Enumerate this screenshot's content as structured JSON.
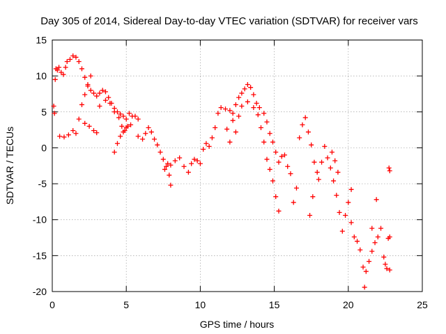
{
  "chart_data": {
    "type": "scatter",
    "title": "Day 305 of 2014, Sidereal Day-to-day VTEC variation (SDTVAR) for receiver vars",
    "xlabel": "GPS time / hours",
    "ylabel": "SDTVAR / TECUs",
    "xlim": [
      0,
      25
    ],
    "ylim": [
      -20,
      15
    ],
    "xticks": [
      0,
      5,
      10,
      15,
      20,
      25
    ],
    "yticks": [
      -20,
      -15,
      -10,
      -5,
      0,
      5,
      10,
      15
    ],
    "grid": true,
    "marker": "+",
    "series": [
      {
        "name": "SDTVAR",
        "color": "#ff0000",
        "points": [
          [
            0.1,
            5.8
          ],
          [
            0.15,
            4.8
          ],
          [
            0.2,
            9.5
          ],
          [
            0.25,
            11.0
          ],
          [
            0.35,
            10.8
          ],
          [
            0.45,
            11.2
          ],
          [
            0.6,
            10.5
          ],
          [
            0.75,
            10.2
          ],
          [
            0.9,
            11.2
          ],
          [
            1.0,
            12.0
          ],
          [
            1.2,
            12.3
          ],
          [
            1.4,
            12.8
          ],
          [
            1.6,
            12.6
          ],
          [
            1.8,
            12.0
          ],
          [
            2.0,
            11.0
          ],
          [
            2.2,
            9.8
          ],
          [
            2.4,
            8.8
          ],
          [
            2.6,
            8.0
          ],
          [
            2.8,
            7.6
          ],
          [
            3.0,
            7.2
          ],
          [
            3.2,
            7.6
          ],
          [
            3.4,
            8.0
          ],
          [
            3.6,
            7.8
          ],
          [
            3.8,
            7.0
          ],
          [
            4.0,
            6.2
          ],
          [
            4.2,
            5.5
          ],
          [
            4.4,
            5.0
          ],
          [
            4.6,
            4.7
          ],
          [
            4.8,
            4.4
          ],
          [
            5.0,
            4.0
          ],
          [
            5.2,
            4.8
          ],
          [
            5.4,
            4.4
          ],
          [
            5.6,
            4.4
          ],
          [
            5.8,
            4.0
          ],
          [
            0.5,
            1.6
          ],
          [
            0.8,
            1.5
          ],
          [
            1.1,
            1.8
          ],
          [
            1.4,
            2.4
          ],
          [
            1.6,
            2.0
          ],
          [
            1.8,
            4.0
          ],
          [
            2.0,
            6.0
          ],
          [
            2.2,
            7.4
          ],
          [
            2.4,
            8.6
          ],
          [
            2.6,
            10.0
          ],
          [
            2.2,
            3.4
          ],
          [
            2.5,
            3.0
          ],
          [
            2.8,
            2.4
          ],
          [
            3.0,
            2.1
          ],
          [
            3.2,
            5.8
          ],
          [
            3.6,
            6.6
          ],
          [
            3.9,
            6.2
          ],
          [
            4.2,
            5.0
          ],
          [
            4.5,
            4.2
          ],
          [
            4.7,
            3.0
          ],
          [
            4.9,
            2.4
          ],
          [
            5.1,
            3.0
          ],
          [
            4.2,
            -0.6
          ],
          [
            4.4,
            0.6
          ],
          [
            4.6,
            1.6
          ],
          [
            4.8,
            2.2
          ],
          [
            5.0,
            2.8
          ],
          [
            5.3,
            3.2
          ],
          [
            5.8,
            1.6
          ],
          [
            6.1,
            1.2
          ],
          [
            6.3,
            2.0
          ],
          [
            6.5,
            2.8
          ],
          [
            6.7,
            2.2
          ],
          [
            6.9,
            1.2
          ],
          [
            7.1,
            0.4
          ],
          [
            7.3,
            -0.6
          ],
          [
            7.5,
            -1.6
          ],
          [
            7.7,
            -2.6
          ],
          [
            7.9,
            -3.8
          ],
          [
            8.0,
            -5.2
          ],
          [
            7.6,
            -3.0
          ],
          [
            7.8,
            -2.2
          ],
          [
            8.0,
            -2.4
          ],
          [
            8.3,
            -1.8
          ],
          [
            8.6,
            -1.4
          ],
          [
            8.9,
            -2.6
          ],
          [
            9.2,
            -3.4
          ],
          [
            9.4,
            -2.2
          ],
          [
            9.6,
            -1.6
          ],
          [
            9.8,
            -1.8
          ],
          [
            10.0,
            -2.2
          ],
          [
            10.2,
            -0.2
          ],
          [
            10.4,
            0.6
          ],
          [
            10.6,
            0.2
          ],
          [
            10.8,
            1.4
          ],
          [
            11.0,
            2.8
          ],
          [
            11.2,
            4.8
          ],
          [
            11.4,
            5.6
          ],
          [
            11.7,
            5.4
          ],
          [
            12.0,
            5.2
          ],
          [
            12.2,
            4.8
          ],
          [
            12.4,
            6.0
          ],
          [
            12.6,
            7.0
          ],
          [
            12.8,
            7.6
          ],
          [
            13.0,
            8.2
          ],
          [
            13.2,
            8.8
          ],
          [
            13.4,
            8.4
          ],
          [
            13.6,
            7.4
          ],
          [
            13.8,
            6.2
          ],
          [
            14.0,
            5.6
          ],
          [
            14.3,
            4.8
          ],
          [
            14.5,
            3.6
          ],
          [
            14.7,
            2.0
          ],
          [
            14.9,
            0.8
          ],
          [
            15.1,
            -0.6
          ],
          [
            15.3,
            -2.0
          ],
          [
            11.8,
            2.6
          ],
          [
            12.0,
            0.8
          ],
          [
            12.2,
            3.8
          ],
          [
            12.4,
            2.2
          ],
          [
            12.6,
            4.4
          ],
          [
            12.8,
            5.8
          ],
          [
            13.2,
            6.4
          ],
          [
            13.6,
            5.6
          ],
          [
            13.9,
            4.6
          ],
          [
            14.1,
            2.8
          ],
          [
            14.3,
            0.8
          ],
          [
            14.5,
            -1.6
          ],
          [
            14.7,
            -3.0
          ],
          [
            14.9,
            -4.6
          ],
          [
            15.1,
            -6.8
          ],
          [
            15.3,
            -8.8
          ],
          [
            15.5,
            -1.2
          ],
          [
            15.7,
            -1.0
          ],
          [
            15.9,
            -2.6
          ],
          [
            16.1,
            -3.6
          ],
          [
            16.3,
            -7.6
          ],
          [
            16.5,
            -5.6
          ],
          [
            16.7,
            1.4
          ],
          [
            16.9,
            3.2
          ],
          [
            17.1,
            4.2
          ],
          [
            17.3,
            2.2
          ],
          [
            17.5,
            0.4
          ],
          [
            17.7,
            -2.0
          ],
          [
            17.9,
            -3.4
          ],
          [
            17.4,
            -9.4
          ],
          [
            17.6,
            -6.8
          ],
          [
            18.0,
            -4.4
          ],
          [
            18.2,
            -2.0
          ],
          [
            18.4,
            0.2
          ],
          [
            18.6,
            -1.4
          ],
          [
            18.8,
            -2.8
          ],
          [
            19.0,
            -4.6
          ],
          [
            19.2,
            -6.6
          ],
          [
            19.4,
            -9.0
          ],
          [
            19.6,
            -11.6
          ],
          [
            19.8,
            -9.4
          ],
          [
            20.0,
            -7.6
          ],
          [
            20.2,
            -5.8
          ],
          [
            18.9,
            -0.6
          ],
          [
            19.1,
            -1.8
          ],
          [
            19.3,
            -3.4
          ],
          [
            20.2,
            -10.4
          ],
          [
            20.4,
            -12.4
          ],
          [
            20.6,
            -13.0
          ],
          [
            20.8,
            -14.2
          ],
          [
            21.0,
            -16.6
          ],
          [
            21.1,
            -19.4
          ],
          [
            21.2,
            -17.2
          ],
          [
            21.4,
            -15.8
          ],
          [
            21.6,
            -14.4
          ],
          [
            21.8,
            -13.2
          ],
          [
            22.0,
            -12.4
          ],
          [
            22.2,
            -11.2
          ],
          [
            22.4,
            -15.2
          ],
          [
            22.5,
            -16.2
          ],
          [
            22.6,
            -16.8
          ],
          [
            22.8,
            -17.0
          ],
          [
            22.7,
            -12.6
          ],
          [
            22.8,
            -12.4
          ],
          [
            21.6,
            -11.2
          ],
          [
            21.9,
            -7.2
          ],
          [
            22.8,
            -3.2
          ],
          [
            22.75,
            -2.8
          ]
        ]
      }
    ]
  }
}
